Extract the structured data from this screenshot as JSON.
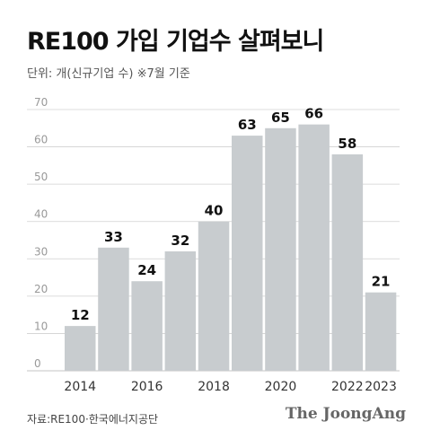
{
  "title": "RE100 가입 기업수 살펴보니",
  "subtitle": "단위: 개(신규기업 수) ※7월 기준",
  "source": "자료:RE100·한국에너지공단",
  "brand": "The JoongAng",
  "colors": {
    "bar": "#c8cccf",
    "grid": "#d0d0d0",
    "axis_text": "#999999",
    "label": "#111111",
    "tick": "#333333"
  },
  "chart_data": {
    "type": "bar",
    "categories": [
      "2014",
      "2015",
      "2016",
      "2017",
      "2018",
      "2019",
      "2020",
      "2021",
      "2022",
      "2023"
    ],
    "tick_labels": [
      "2014",
      "",
      "2016",
      "",
      "2018",
      "",
      "2020",
      "",
      "2022",
      "2023"
    ],
    "values": [
      12,
      33,
      24,
      32,
      40,
      63,
      65,
      66,
      58,
      21
    ],
    "title": "RE100 가입 기업수 살펴보니",
    "ylabel": "",
    "xlabel": "",
    "ylim": [
      0,
      70
    ],
    "yticks": [
      0,
      10,
      20,
      30,
      40,
      50,
      60,
      70
    ],
    "grid": true,
    "data_labels": true
  }
}
